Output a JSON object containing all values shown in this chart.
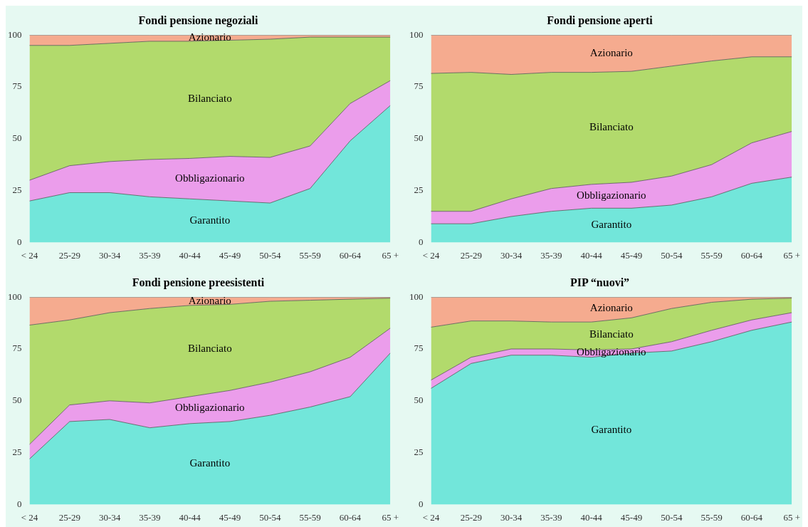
{
  "chart_data": [
    {
      "type": "area",
      "title": "Fondi pensione negoziali",
      "stacked": true,
      "legend": false,
      "categories": [
        "< 24",
        "25-29",
        "30-34",
        "35-39",
        "40-44",
        "45-49",
        "50-54",
        "55-59",
        "60-64",
        "65 +"
      ],
      "ylim": [
        0,
        100
      ],
      "yticks": [
        0,
        25,
        50,
        75,
        100
      ],
      "series": [
        {
          "name": "Garantito",
          "color": "#72e6da",
          "values": [
            20,
            24,
            24,
            22,
            21,
            20,
            19,
            26,
            49,
            66
          ]
        },
        {
          "name": "Obbligazionario",
          "color": "#eb9deb",
          "values": [
            10,
            13,
            15,
            18,
            19.5,
            21.5,
            22,
            20.5,
            18,
            12
          ]
        },
        {
          "name": "Bilanciato",
          "color": "#b2da6c",
          "values": [
            65,
            58,
            57,
            57,
            56.5,
            56,
            57,
            52.5,
            32,
            21
          ]
        },
        {
          "name": "Azionario",
          "color": "#f5ab8f",
          "values": [
            5,
            5,
            4,
            3,
            3,
            2.5,
            2,
            1,
            1,
            1
          ]
        }
      ]
    },
    {
      "type": "area",
      "title": "Fondi pensione aperti",
      "stacked": true,
      "legend": false,
      "categories": [
        "< 24",
        "25-29",
        "30-34",
        "35-39",
        "40-44",
        "45-49",
        "50-54",
        "55-59",
        "60-64",
        "65 +"
      ],
      "ylim": [
        0,
        100
      ],
      "yticks": [
        0,
        25,
        50,
        75,
        100
      ],
      "series": [
        {
          "name": "Garantito",
          "color": "#72e6da",
          "values": [
            9,
            9,
            12.5,
            15,
            16.5,
            16.5,
            18,
            22,
            28.5,
            31.5
          ]
        },
        {
          "name": "Obbligazionario",
          "color": "#eb9deb",
          "values": [
            6,
            6,
            8.5,
            11,
            11.5,
            12.5,
            14,
            15.5,
            19.5,
            22
          ]
        },
        {
          "name": "Bilanciato",
          "color": "#b2da6c",
          "values": [
            66.5,
            67,
            60,
            56,
            54,
            53.5,
            53,
            50,
            41.5,
            36
          ]
        },
        {
          "name": "Azionario",
          "color": "#f5ab8f",
          "values": [
            18.5,
            18,
            19,
            18,
            18,
            17.5,
            15,
            12.5,
            10.5,
            10.5
          ]
        }
      ]
    },
    {
      "type": "area",
      "title": "Fondi pensione preesistenti",
      "stacked": true,
      "legend": false,
      "categories": [
        "< 24",
        "25-29",
        "30-34",
        "35-39",
        "40-44",
        "45-49",
        "50-54",
        "55-59",
        "60-64",
        "65 +"
      ],
      "ylim": [
        0,
        100
      ],
      "yticks": [
        0,
        25,
        50,
        75,
        100
      ],
      "series": [
        {
          "name": "Garantito",
          "color": "#72e6da",
          "values": [
            22,
            40,
            41,
            37,
            39,
            40,
            43,
            47,
            52,
            73
          ]
        },
        {
          "name": "Obbligazionario",
          "color": "#eb9deb",
          "values": [
            7,
            8,
            9,
            12,
            13,
            15,
            16,
            17,
            19,
            12
          ]
        },
        {
          "name": "Bilanciato",
          "color": "#b2da6c",
          "values": [
            57.5,
            41,
            42.5,
            45.5,
            44,
            41.5,
            39,
            34.5,
            28,
            14.5
          ]
        },
        {
          "name": "Azionario",
          "color": "#f5ab8f",
          "values": [
            13.5,
            11,
            7.5,
            5.5,
            4,
            3.5,
            2,
            1.5,
            1,
            0.5
          ]
        }
      ]
    },
    {
      "type": "area",
      "title": "PIP “nuovi”",
      "stacked": true,
      "legend": false,
      "categories": [
        "< 24",
        "25-29",
        "30-34",
        "35-39",
        "40-44",
        "45-49",
        "50-54",
        "55-59",
        "60-64",
        "65 +"
      ],
      "ylim": [
        0,
        100
      ],
      "yticks": [
        0,
        25,
        50,
        75,
        100
      ],
      "series": [
        {
          "name": "Garantito",
          "color": "#72e6da",
          "values": [
            56,
            68,
            72,
            72,
            71,
            73,
            74,
            78.5,
            84,
            88
          ]
        },
        {
          "name": "Obbligazionario",
          "color": "#eb9deb",
          "values": [
            4,
            3,
            3,
            3,
            3.5,
            2,
            4.5,
            5.5,
            5,
            4.5
          ]
        },
        {
          "name": "Bilanciato",
          "color": "#b2da6c",
          "values": [
            25.5,
            17.5,
            13.5,
            13,
            13.5,
            15,
            16,
            13.5,
            10,
            7
          ]
        },
        {
          "name": "Azionario",
          "color": "#f5ab8f",
          "values": [
            14.5,
            11.5,
            11.5,
            12,
            12,
            10,
            5.5,
            2.5,
            1,
            0.5
          ]
        }
      ]
    }
  ]
}
